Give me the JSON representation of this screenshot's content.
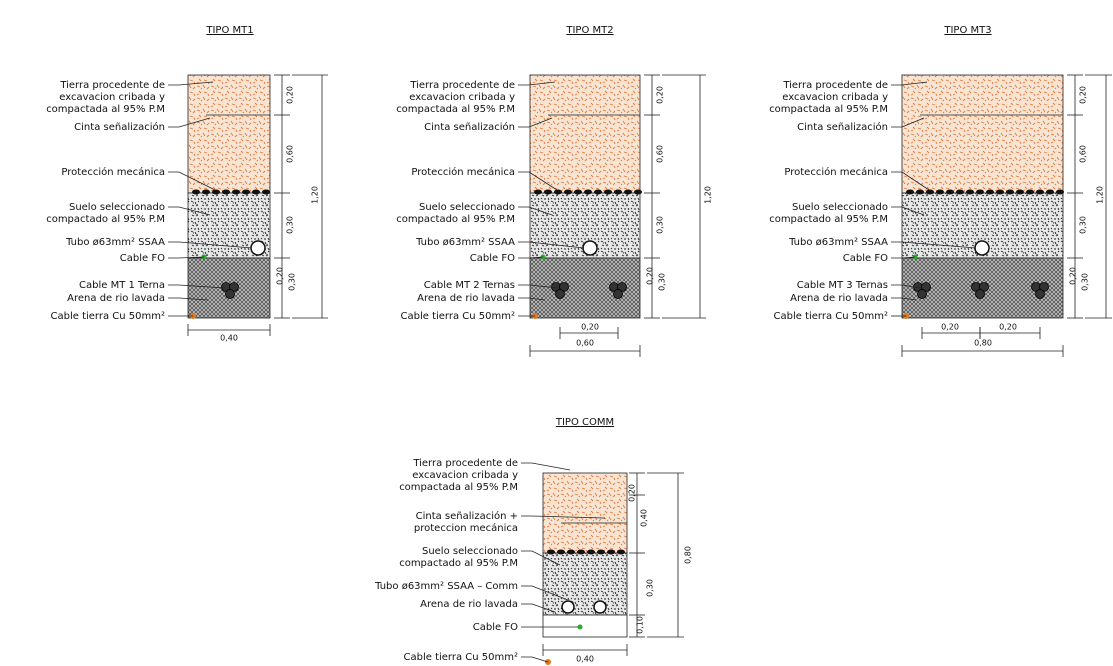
{
  "sections": [
    {
      "title": "TIPO MT1",
      "labels": [
        "Tierra procedente de",
        "excavacion cribada y",
        "compactada al 95% P.M",
        "Cinta señalización",
        "Protección mecánica",
        "Suelo seleccionado",
        "compactado al 95% P.M",
        "Tubo ø63mm² SSAA",
        "Cable FO",
        "Cable MT 1 Terna",
        "Arena de rio lavada",
        "Cable tierra Cu 50mm²"
      ],
      "dims": [
        "0,20",
        "0,60",
        "1,20",
        "0,30",
        "0,20",
        "0,30",
        "0,40"
      ]
    },
    {
      "title": "TIPO MT2",
      "labels": [
        "Tierra procedente de",
        "excavacion cribada y",
        "compactada al 95% P.M",
        "Cinta señalización",
        "Protección mecánica",
        "Suelo seleccionado",
        "compactado al 95% P.M",
        "Tubo ø63mm² SSAA",
        "Cable FO",
        "Cable MT 2 Ternas",
        "Arena de rio lavada",
        "Cable tierra Cu 50mm²"
      ],
      "dims": [
        "0,20",
        "0,60",
        "1,20",
        "0,30",
        "0,20",
        "0,30",
        "0,20",
        "0,60"
      ]
    },
    {
      "title": "TIPO MT3",
      "labels": [
        "Tierra procedente de",
        "excavacion cribada y",
        "compactada al 95% P.M",
        "Cinta señalización",
        "Protección mecánica",
        "Suelo seleccionado",
        "compactado al 95% P.M",
        "Tubo ø63mm² SSAA",
        "Cable FO",
        "Cable MT 3 Ternas",
        "Arena de rio lavada",
        "Cable tierra Cu 50mm²"
      ],
      "dims": [
        "0,20",
        "0,60",
        "1,20",
        "0,30",
        "0,20",
        "0,30",
        "0,20",
        "0,20",
        "0,80"
      ]
    },
    {
      "title": "TIPO COMM",
      "labels": [
        "Tierra procedente de",
        "excavacion cribada y",
        "compactada al 95% P.M",
        "Cinta señalización +",
        "proteccion mecánica",
        "Suelo seleccionado",
        "compactado al 95% P.M",
        "Tubo ø63mm² SSAA – Comm",
        "Arena de rio lavada",
        "Cable FO",
        "Cable tierra Cu 50mm²"
      ],
      "dims": [
        "0,20",
        "0,40",
        "0,80",
        "0,30",
        "0,10",
        "0,40"
      ]
    }
  ]
}
